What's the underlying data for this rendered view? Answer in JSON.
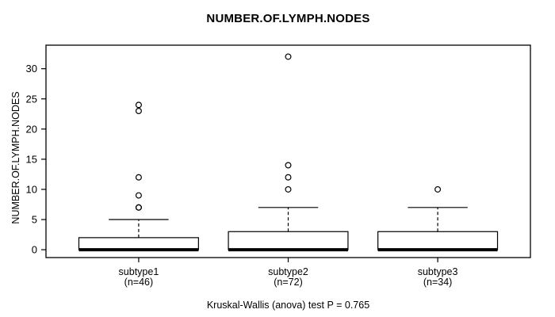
{
  "figure": {
    "background": "#ffffff",
    "foreground": "#000000"
  },
  "chart_data": {
    "type": "boxplot",
    "title": "NUMBER.OF.LYMPH.NODES",
    "ylabel": "NUMBER.OF.LYMPH.NODES",
    "xlabel": "",
    "footnote": "Kruskal-Wallis (anova) test P = 0.765",
    "legend": "none",
    "grid": false,
    "ylim": [
      -1.3,
      33.9
    ],
    "y_ticks": [
      0,
      5,
      10,
      15,
      20,
      25,
      30
    ],
    "categories": [
      "subtype1",
      "subtype2",
      "subtype3"
    ],
    "category_sublabels": [
      "(n=46)",
      "(n=72)",
      "(n=34)"
    ],
    "series": [
      {
        "name": "subtype1",
        "n": 46,
        "whisker_low": 0,
        "q1": 0,
        "median": 0,
        "q3": 2,
        "whisker_high": 5,
        "outliers": [
          7,
          7,
          9,
          12,
          23,
          24
        ]
      },
      {
        "name": "subtype2",
        "n": 72,
        "whisker_low": 0,
        "q1": 0,
        "median": 0,
        "q3": 3,
        "whisker_high": 7,
        "outliers": [
          10,
          12,
          14,
          32
        ]
      },
      {
        "name": "subtype3",
        "n": 34,
        "whisker_low": 0,
        "q1": 0,
        "median": 0,
        "q3": 3,
        "whisker_high": 7,
        "outliers": [
          10
        ]
      }
    ],
    "colors": {
      "box_fill": "#ffffff",
      "line": "#000000",
      "background": "#ffffff"
    }
  }
}
